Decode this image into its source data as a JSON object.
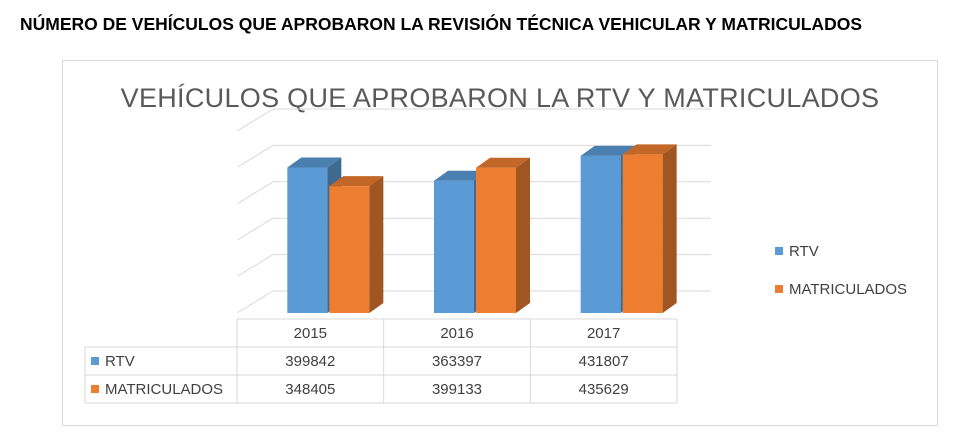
{
  "page": {
    "heading": "NÚMERO DE VEHÍCULOS QUE APROBARON LA REVISIÓN TÉCNICA VEHICULAR Y MATRICULADOS"
  },
  "chart_data": {
    "type": "bar",
    "title": "VEHÍCULOS QUE APROBARON LA RTV Y MATRICULADOS",
    "categories": [
      "2015",
      "2016",
      "2017"
    ],
    "series": [
      {
        "name": "RTV",
        "values": [
          399842,
          363397,
          431807
        ],
        "color": "#5b9bd5"
      },
      {
        "name": "MATRICULADOS",
        "values": [
          348405,
          399133,
          435629
        ],
        "color": "#ed7d31"
      }
    ],
    "ylim": [
      0,
      500000
    ],
    "grid": true,
    "legend_position": "right",
    "data_table": true,
    "style": "3d-clustered-column"
  }
}
